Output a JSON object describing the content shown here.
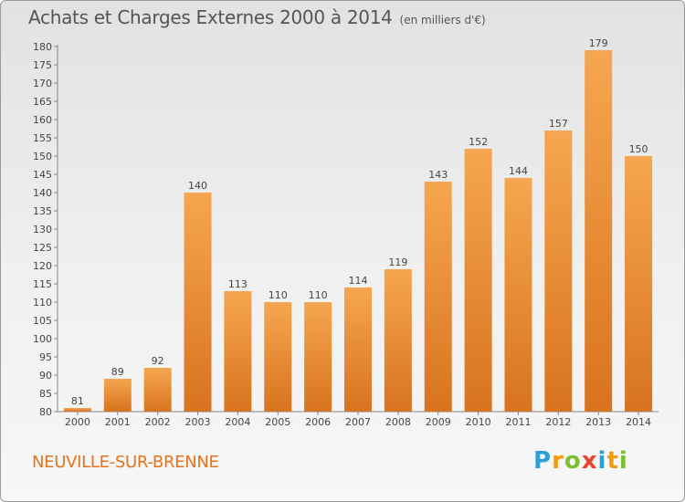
{
  "header": {
    "title": "Achats et Charges Externes 2000 à 2014",
    "unit": "(en milliers d'€)"
  },
  "footer": {
    "city": "NEUVILLE-SUR-BRENNE",
    "brand": "Proxiti",
    "brand_letters": [
      {
        "ch": "P",
        "color": "#2a9fd8"
      },
      {
        "ch": "r",
        "color": "#f39c12"
      },
      {
        "ch": "o",
        "color": "#7cbf2f"
      },
      {
        "ch": "x",
        "color": "#e8452c"
      },
      {
        "ch": "i",
        "color": "#2a9fd8"
      },
      {
        "ch": "t",
        "color": "#f39c12"
      },
      {
        "ch": "i",
        "color": "#7cbf2f"
      }
    ]
  },
  "chart_data": {
    "type": "bar",
    "title": "Achats et Charges Externes 2000 à 2014",
    "subtitle": "(en milliers d'€)",
    "categories": [
      "2000",
      "2001",
      "2002",
      "2003",
      "2004",
      "2005",
      "2006",
      "2007",
      "2008",
      "2009",
      "2010",
      "2011",
      "2012",
      "2013",
      "2014"
    ],
    "values": [
      81,
      89,
      92,
      140,
      113,
      110,
      110,
      114,
      119,
      143,
      152,
      144,
      157,
      179,
      150
    ],
    "ylim": [
      80,
      180
    ],
    "yticks": [
      80,
      85,
      90,
      95,
      100,
      105,
      110,
      115,
      120,
      125,
      130,
      135,
      140,
      145,
      150,
      155,
      160,
      165,
      170,
      175,
      180
    ],
    "grid": false,
    "legend": "none",
    "colors": {
      "bar_light": "#f6a650",
      "bar_dark": "#d8731f",
      "axis": "#888888",
      "label": "#444444"
    }
  }
}
